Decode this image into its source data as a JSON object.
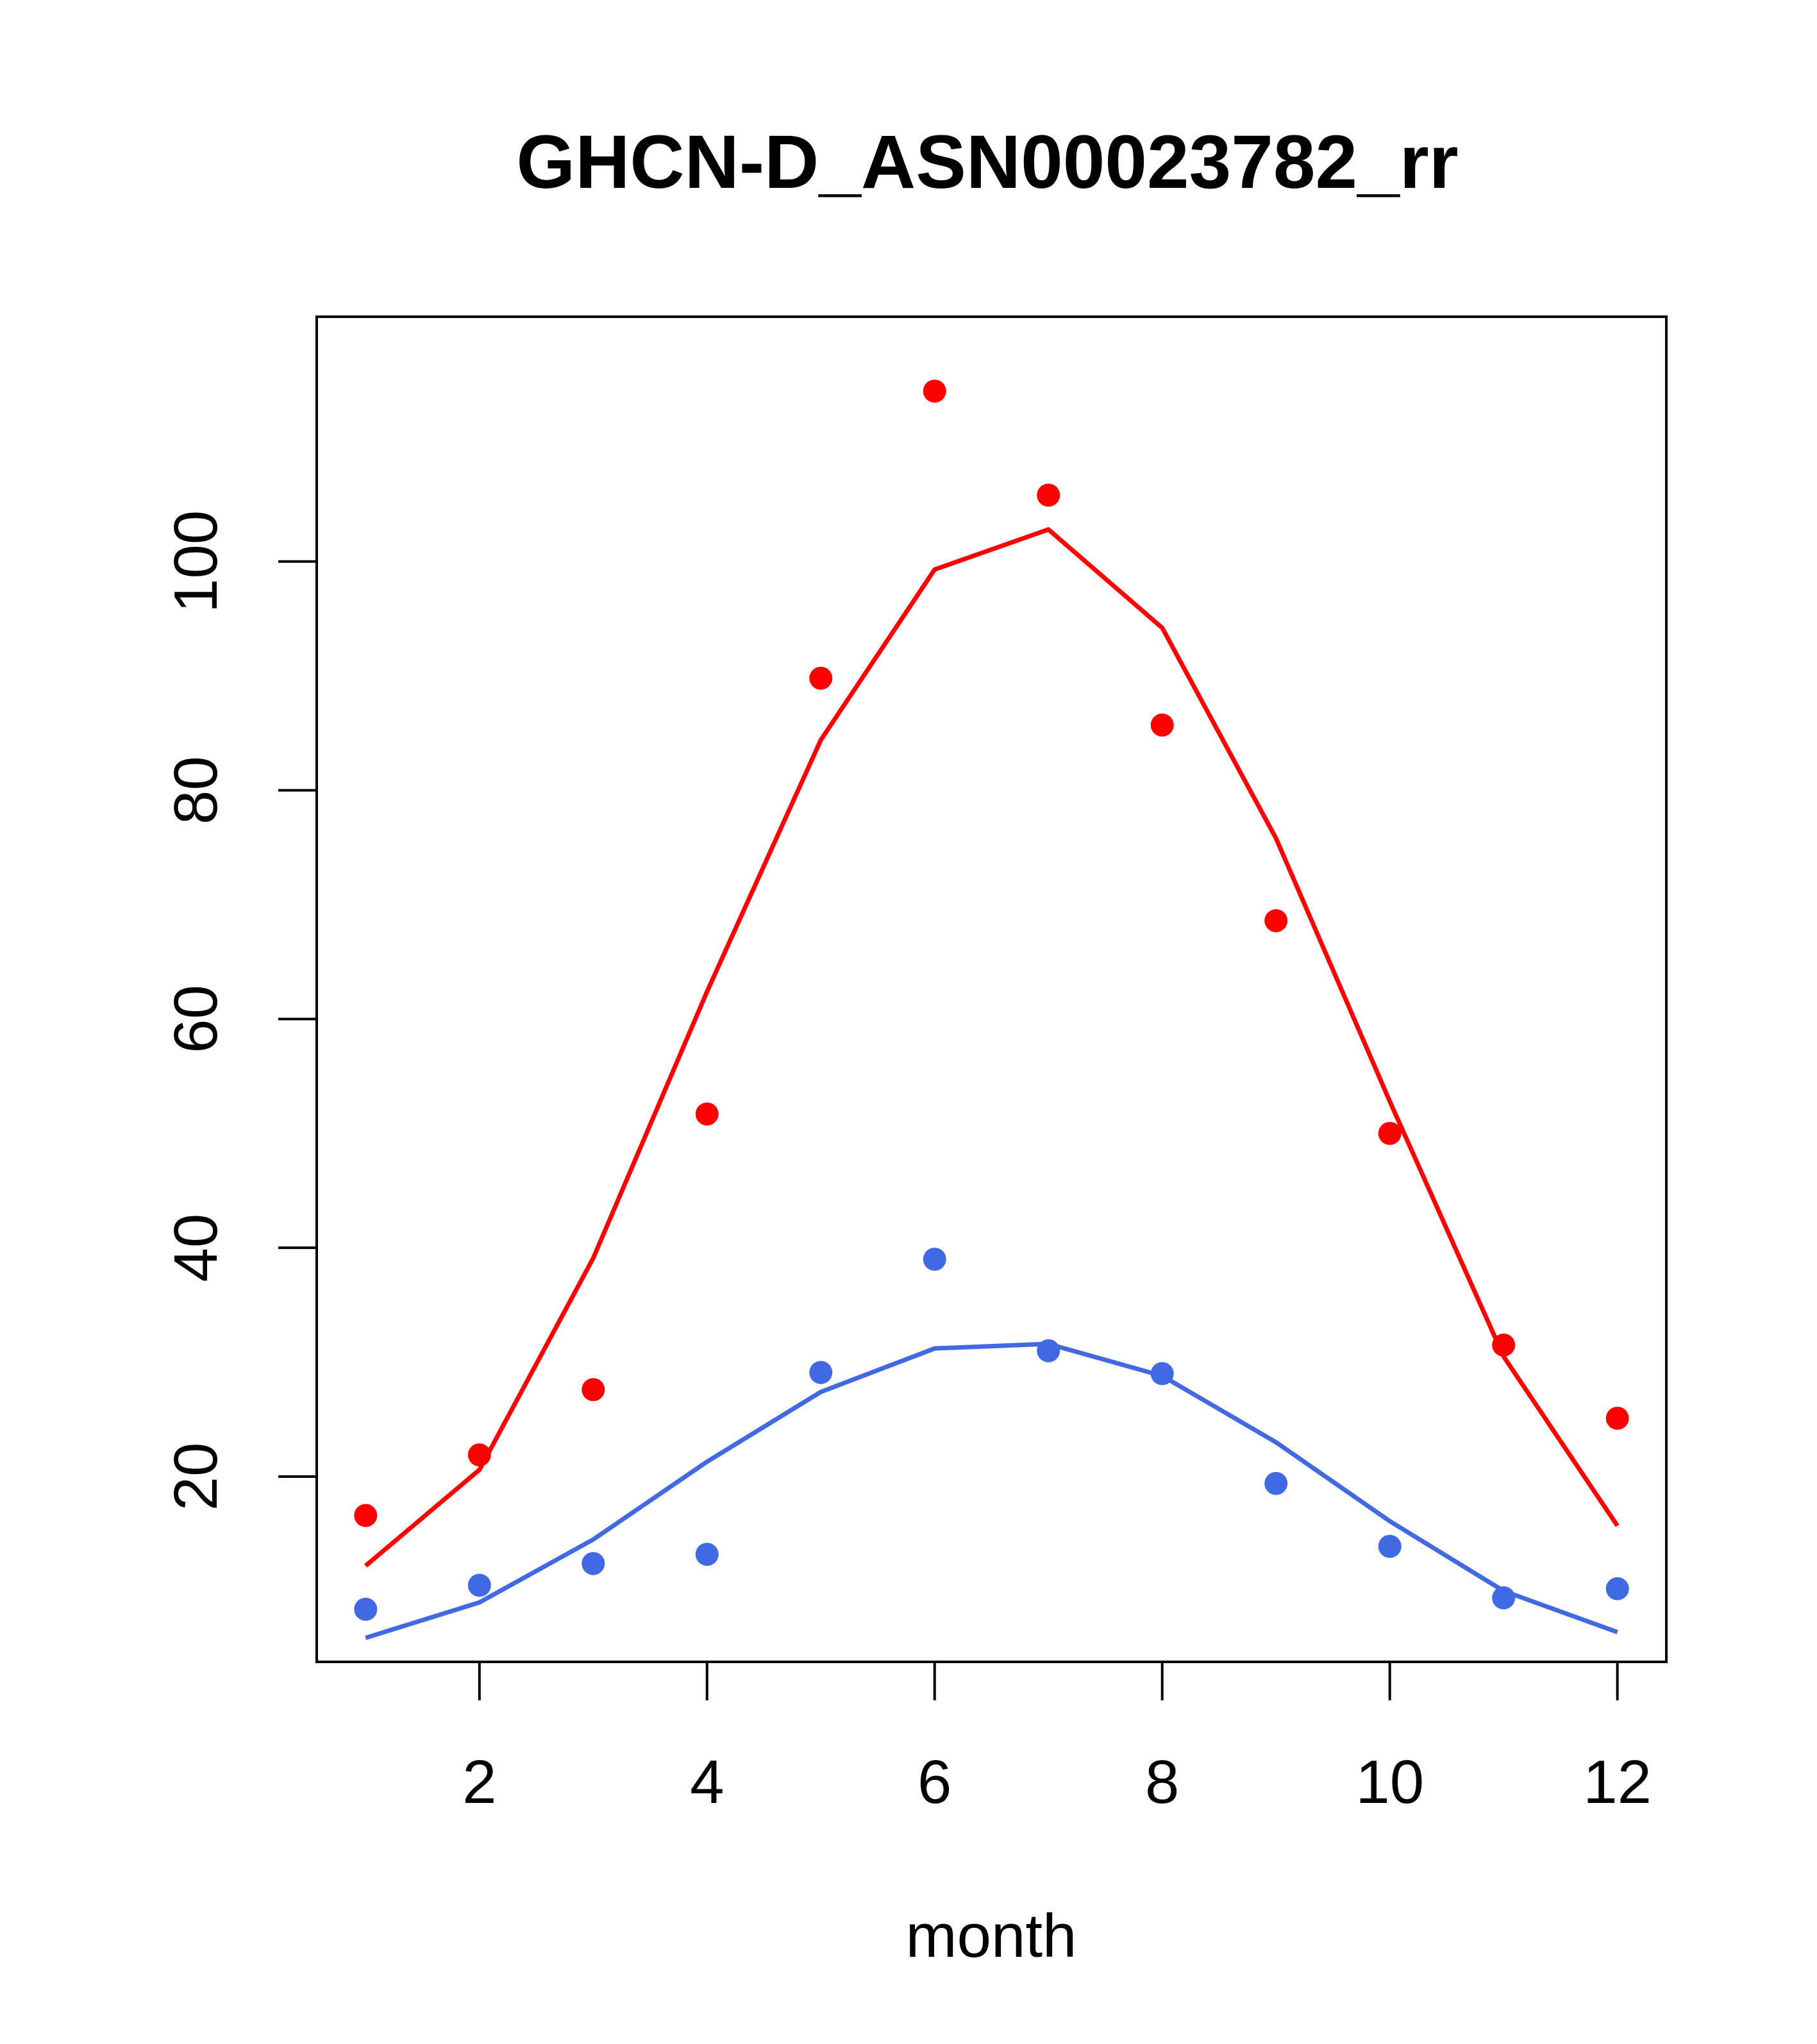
{
  "chart_data": {
    "type": "line",
    "title": "GHCN-D_ASN00023782_rr",
    "xlabel": "month",
    "ylabel": "",
    "xlim": [
      0.57,
      12.43
    ],
    "ylim": [
      3.8,
      121.4
    ],
    "x_ticks": [
      2,
      4,
      6,
      8,
      10,
      12
    ],
    "y_ticks": [
      20,
      40,
      60,
      80,
      100
    ],
    "grid": false,
    "legend": "none",
    "x": [
      1,
      2,
      3,
      4,
      5,
      6,
      7,
      8,
      9,
      10,
      11,
      12
    ],
    "series": [
      {
        "color": "#ff0000",
        "points": [
          16.6,
          21.9,
          27.6,
          51.7,
          89.8,
          114.9,
          105.8,
          85.7,
          68.6,
          50.0,
          31.5,
          25.1
        ],
        "line": [
          12.2,
          20.6,
          39.1,
          62.4,
          84.4,
          99.3,
          102.8,
          94.2,
          75.8,
          52.8,
          30.5,
          15.7
        ]
      },
      {
        "color": "#4169e1",
        "points": [
          8.4,
          10.5,
          12.4,
          13.2,
          29.1,
          39.0,
          31.0,
          29.0,
          19.4,
          13.9,
          9.4,
          10.2
        ],
        "line": [
          5.9,
          9.0,
          14.5,
          21.3,
          27.4,
          31.2,
          31.6,
          28.8,
          23.0,
          16.1,
          10.0,
          6.4
        ]
      }
    ]
  }
}
